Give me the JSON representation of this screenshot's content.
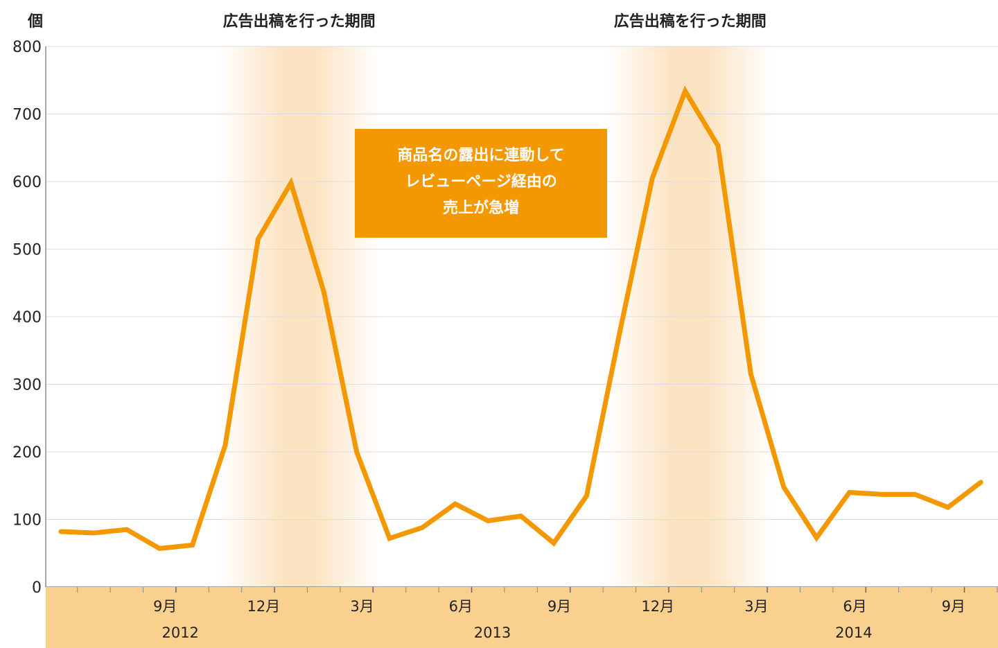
{
  "chart_data": {
    "type": "line",
    "y_unit": "個",
    "ylim": [
      0,
      800
    ],
    "yticks": [
      0,
      100,
      200,
      300,
      400,
      500,
      600,
      700,
      800
    ],
    "x_month_ticks": [
      {
        "index": 3,
        "label": "9月"
      },
      {
        "index": 6,
        "label": "12月"
      },
      {
        "index": 9,
        "label": "3月"
      },
      {
        "index": 12,
        "label": "6月"
      },
      {
        "index": 15,
        "label": "9月"
      },
      {
        "index": 18,
        "label": "12月"
      },
      {
        "index": 21,
        "label": "3月"
      },
      {
        "index": 24,
        "label": "6月"
      },
      {
        "index": 27,
        "label": "9月"
      }
    ],
    "x_year_labels": [
      {
        "index": 3,
        "label": "2012"
      },
      {
        "index": 12.5,
        "label": "2013"
      },
      {
        "index": 23.5,
        "label": "2014"
      }
    ],
    "values": [
      82,
      80,
      85,
      57,
      62,
      210,
      515,
      598,
      437,
      200,
      72,
      88,
      123,
      98,
      105,
      65,
      135,
      375,
      605,
      734,
      653,
      315,
      148,
      73,
      140,
      137,
      137,
      118,
      155
    ],
    "highlight_periods": [
      {
        "start": 5.5,
        "end": 9.0,
        "label": "広告出稿を行った期間"
      },
      {
        "start": 17.3,
        "end": 21.0,
        "label": "広告出稿を行った期間"
      }
    ],
    "grid": true,
    "colors": {
      "line": "#F39800",
      "band": "#FBE3C2",
      "axis_band": "#FAD08E",
      "annotation": "#F39800"
    }
  },
  "annotation": {
    "lines": [
      "商品名の露出に連動して",
      "レビューページ経由の",
      "売上が急増"
    ]
  }
}
